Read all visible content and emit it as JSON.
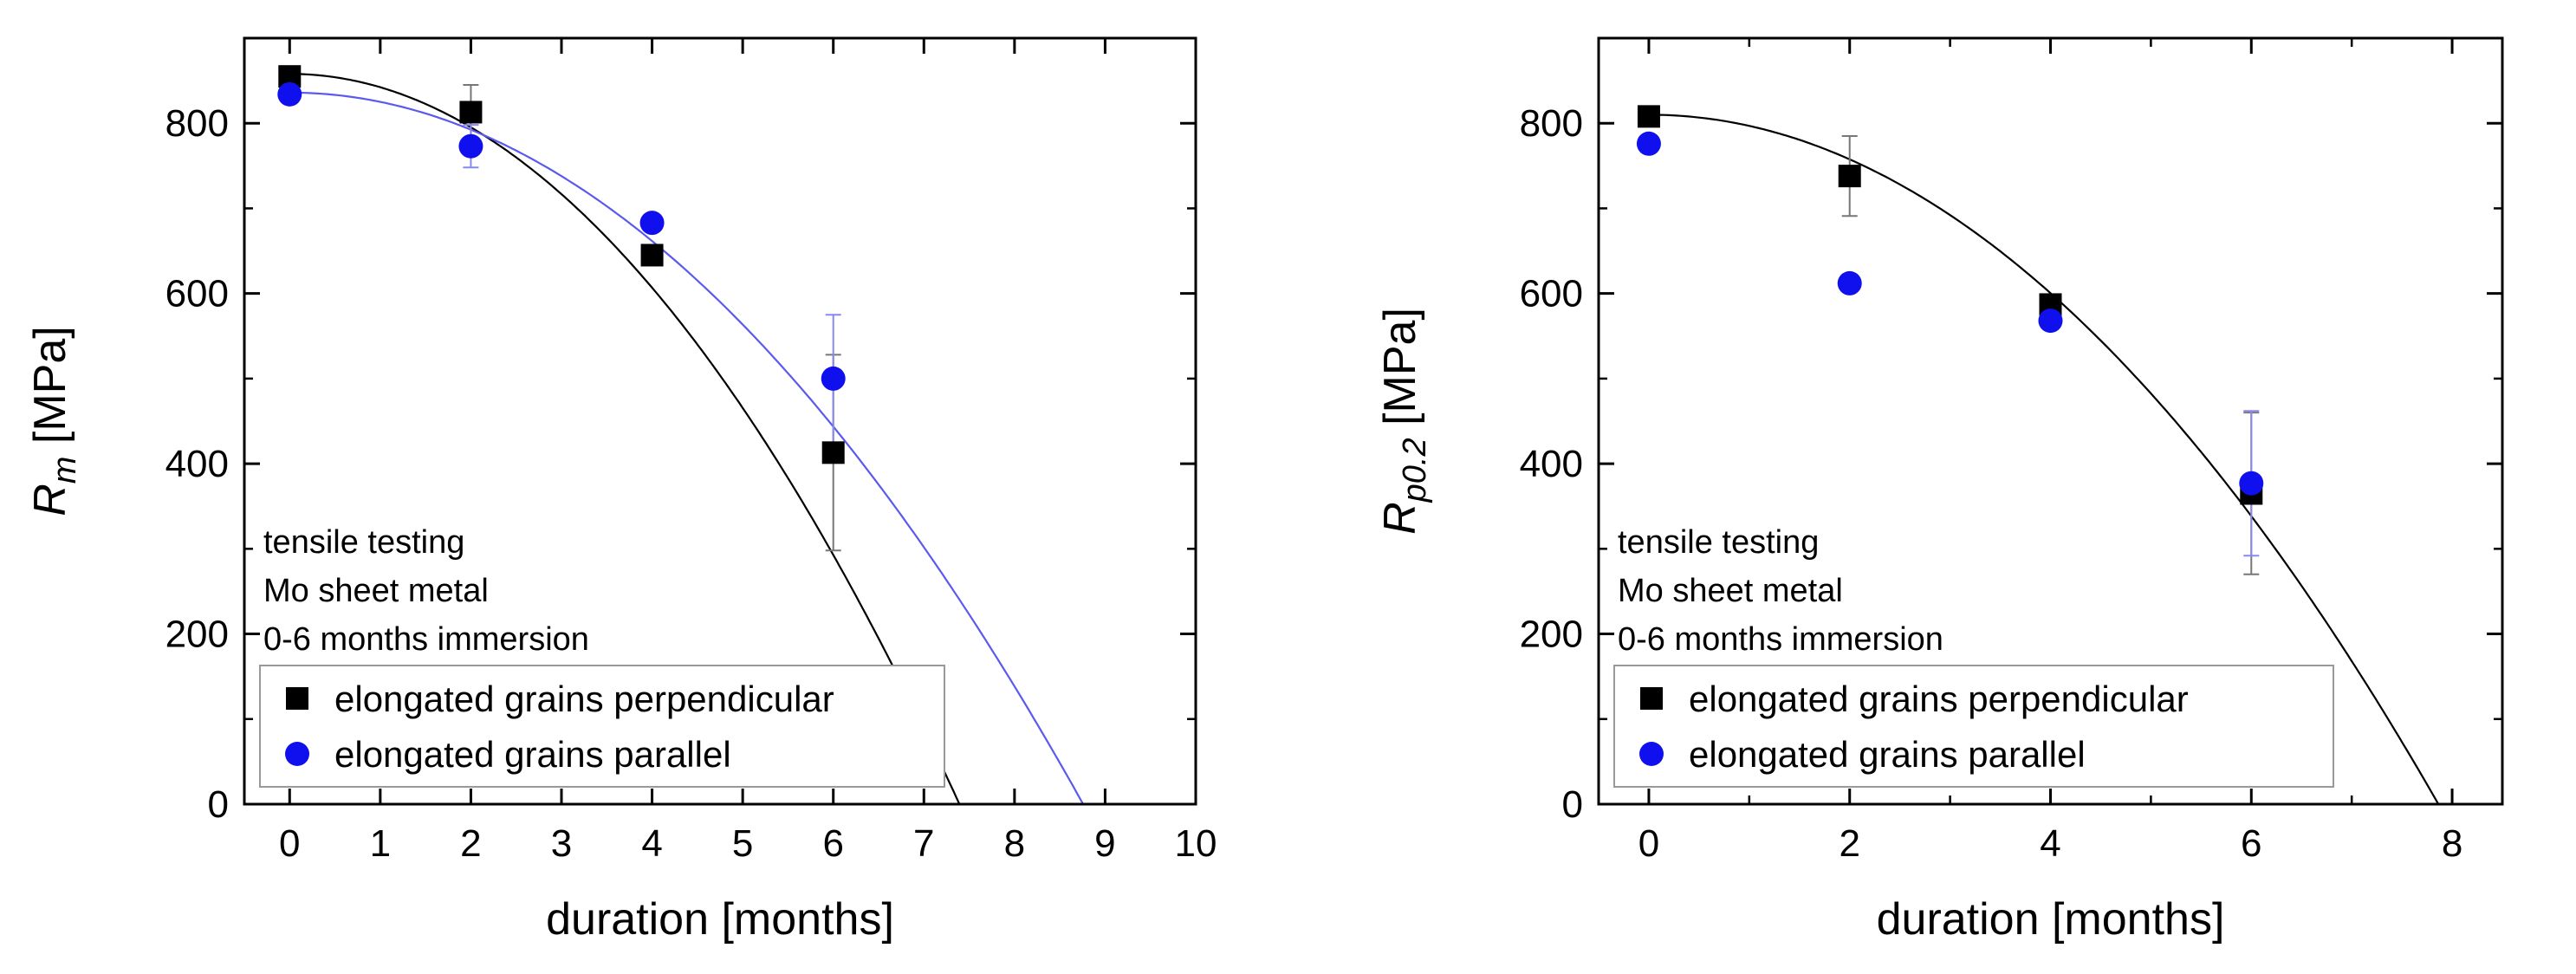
{
  "chart_data": [
    {
      "type": "scatter",
      "ylabel_main": "R",
      "ylabel_sub": "m",
      "ylabel_unit": " [MPa]",
      "xlabel": "duration [months]",
      "xlim": [
        -0.5,
        10
      ],
      "ylim": [
        0,
        900
      ],
      "xticks": [
        0,
        1,
        2,
        3,
        4,
        5,
        6,
        7,
        8,
        9,
        10
      ],
      "yticks": [
        0,
        200,
        400,
        600,
        800
      ],
      "notes": [
        "tensile testing",
        "Mo sheet metal",
        "0-6 months immersion"
      ],
      "legend_position": "bottom-left",
      "series": [
        {
          "name": "elongated grains perpendicular",
          "marker": "square",
          "color": "#000000",
          "x": [
            0,
            2,
            4,
            6
          ],
          "y": [
            855,
            813,
            645,
            413
          ],
          "err": [
            0,
            32,
            10,
            115
          ],
          "fit": {
            "color": "#000000",
            "a": 858,
            "b": -15.7,
            "x_end": 7.4
          }
        },
        {
          "name": "elongated grains parallel",
          "marker": "circle",
          "color": "#1010ee",
          "x": [
            0,
            2,
            4,
            6
          ],
          "y": [
            834,
            773,
            683,
            500
          ],
          "err": [
            0,
            25,
            8,
            75
          ],
          "fit": {
            "color": "#5a5aee",
            "a": 836,
            "b": -10.9,
            "x_end": 8.78
          }
        }
      ]
    },
    {
      "type": "scatter",
      "ylabel_main": "R",
      "ylabel_sub": "p0.2",
      "ylabel_unit": " [MPa]",
      "xlabel": "duration [months]",
      "xlim": [
        -0.5,
        8.5
      ],
      "ylim": [
        0,
        900
      ],
      "xticks": [
        0,
        2,
        4,
        6,
        8
      ],
      "yticks": [
        0,
        200,
        400,
        600,
        800
      ],
      "notes": [
        "tensile testing",
        "Mo sheet metal",
        "0-6 months immersion"
      ],
      "legend_position": "bottom-left",
      "series": [
        {
          "name": "elongated grains perpendicular",
          "marker": "square",
          "color": "#000000",
          "x": [
            0,
            2,
            4,
            6
          ],
          "y": [
            808,
            738,
            587,
            365
          ],
          "err": [
            0,
            47,
            8,
            95
          ],
          "fit": {
            "color": "#000000",
            "a": 810,
            "b": -13.1,
            "x_end": 7.86
          }
        },
        {
          "name": "elongated grains parallel",
          "marker": "circle",
          "color": "#1010ee",
          "x": [
            0,
            2,
            4,
            6
          ],
          "y": [
            776,
            612,
            568,
            377
          ],
          "err": [
            0,
            0,
            6,
            85
          ],
          "fit": null
        }
      ]
    }
  ]
}
